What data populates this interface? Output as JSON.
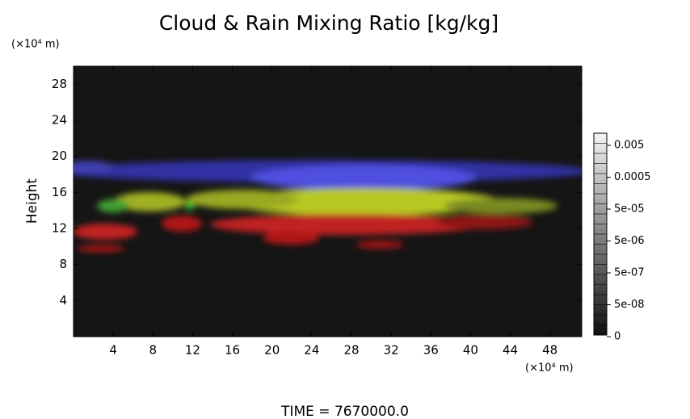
{
  "chart_data": {
    "type": "heatmap",
    "title": "Cloud & Rain Mixing Ratio [kg/kg]",
    "y_unit": "(×10⁴ m)",
    "x_unit": "(×10⁴ m)",
    "ylabel": "Height",
    "xlim": [
      0,
      51.2
    ],
    "ylim": [
      0,
      30
    ],
    "xticks": [
      4,
      8,
      12,
      16,
      20,
      24,
      28,
      32,
      36,
      40,
      44,
      48
    ],
    "yticks": [
      4,
      8,
      12,
      16,
      20,
      24,
      28
    ],
    "colorbar_ticks": [
      0.005,
      0.0005,
      {
        "value": 5e-05,
        "label": "5e-05"
      },
      {
        "value": 5e-06,
        "label": "5e-06"
      },
      {
        "value": 5e-07,
        "label": "5e-07"
      },
      {
        "value": 5e-08,
        "label": "5e-08"
      },
      0
    ],
    "footer": "TIME = 7670000.0"
  }
}
